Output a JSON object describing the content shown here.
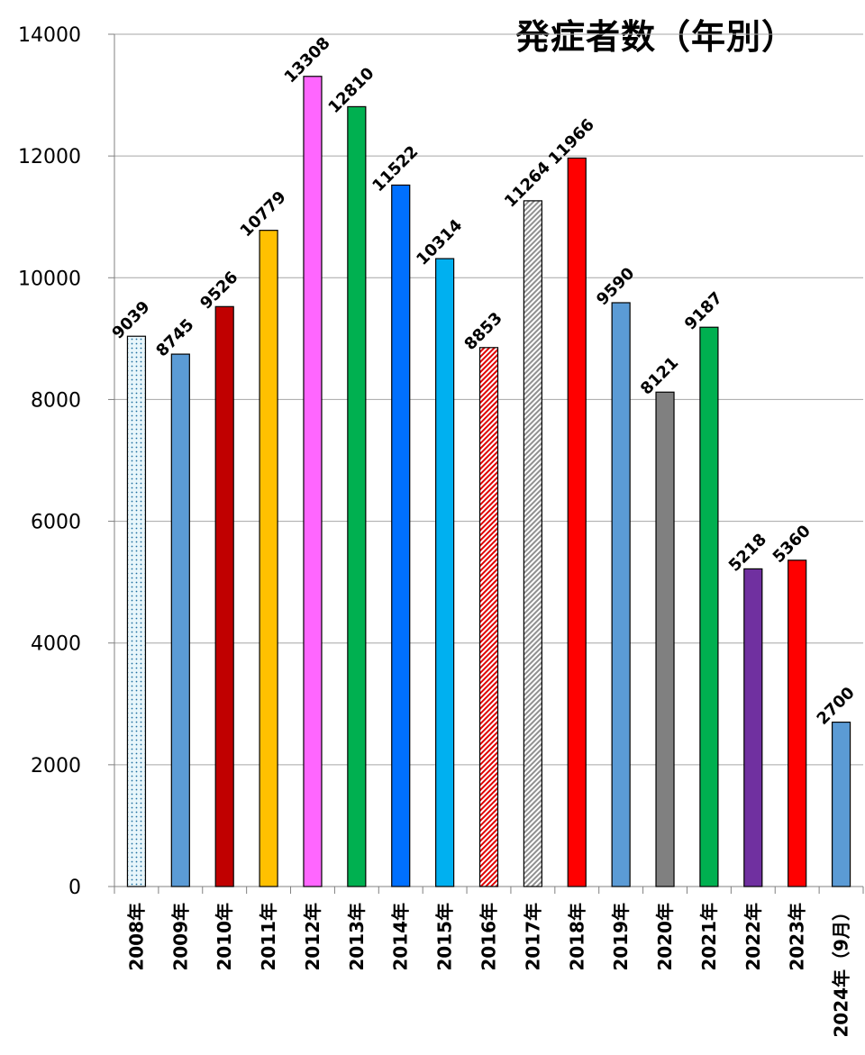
{
  "chart_data": {
    "type": "bar",
    "title": "発症者数（年別）",
    "categories": [
      "2008年",
      "2009年",
      "2010年",
      "2011年",
      "2012年",
      "2013年",
      "2014年",
      "2015年",
      "2016年",
      "2017年",
      "2018年",
      "2019年",
      "2020年",
      "2021年",
      "2022年",
      "2023年",
      "2024年（9月）"
    ],
    "values": [
      9039,
      8745,
      9526,
      10779,
      13308,
      12810,
      11522,
      10314,
      8853,
      11264,
      11966,
      9590,
      8121,
      9187,
      5218,
      5360,
      2700
    ],
    "bar_styles": [
      {
        "fill": "#e8f6fb",
        "pattern": "dots"
      },
      {
        "fill": "#5b9bd5"
      },
      {
        "fill": "#c00000"
      },
      {
        "fill": "#ffc000"
      },
      {
        "fill": "#ff66ff"
      },
      {
        "fill": "#00b050"
      },
      {
        "fill": "#0070ff"
      },
      {
        "fill": "#00b0f0"
      },
      {
        "fill": "#ff0000",
        "pattern": "diagonal"
      },
      {
        "fill": "#bfbfbf",
        "pattern": "diagonal"
      },
      {
        "fill": "#ff0000"
      },
      {
        "fill": "#5b9bd5"
      },
      {
        "fill": "#808080"
      },
      {
        "fill": "#00b050"
      },
      {
        "fill": "#7030a0"
      },
      {
        "fill": "#ff0000"
      },
      {
        "fill": "#5b9bd5"
      }
    ],
    "xlabel": "",
    "ylabel": "",
    "ylim": [
      0,
      14000
    ],
    "yticks": [
      0,
      2000,
      4000,
      6000,
      8000,
      10000,
      12000,
      14000
    ],
    "grid": true,
    "legend": "none"
  }
}
